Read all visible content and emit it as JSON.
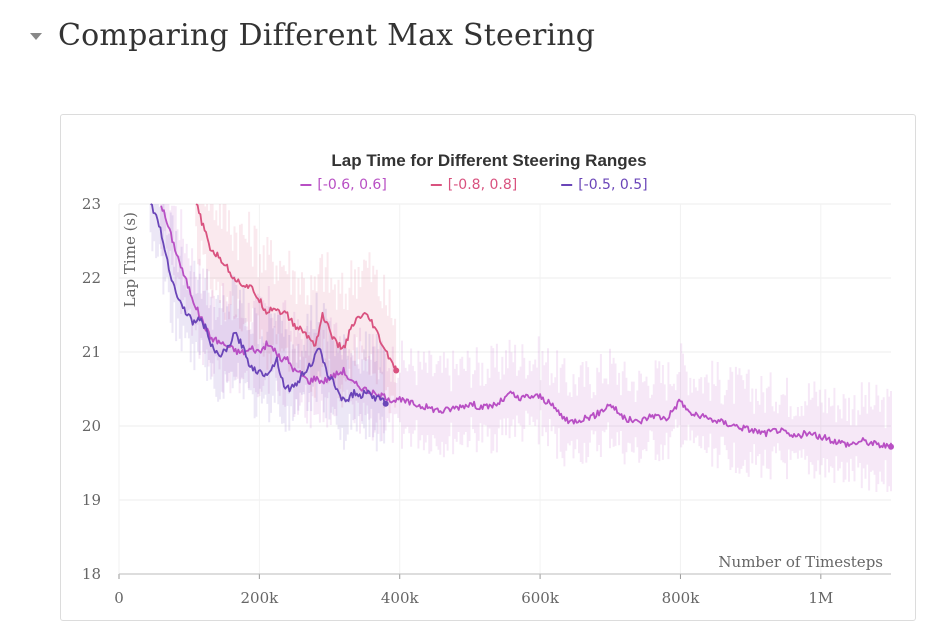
{
  "section": {
    "title": "Comparing Different Max Steering"
  },
  "chart_data": {
    "type": "line",
    "title": "Lap Time for Different Steering Ranges",
    "xlabel": "Number of Timesteps",
    "ylabel": "Lap Time (s)",
    "xlim": [
      0,
      1100000
    ],
    "ylim": [
      18,
      23
    ],
    "x_ticks": [
      {
        "value": 0,
        "label": "0"
      },
      {
        "value": 200000,
        "label": "200k"
      },
      {
        "value": 400000,
        "label": "400k"
      },
      {
        "value": 600000,
        "label": "600k"
      },
      {
        "value": 800000,
        "label": "800k"
      },
      {
        "value": 1000000,
        "label": "1M"
      }
    ],
    "y_ticks": [
      {
        "value": 18,
        "label": "18"
      },
      {
        "value": 19,
        "label": "19"
      },
      {
        "value": 20,
        "label": "20"
      },
      {
        "value": 21,
        "label": "21"
      },
      {
        "value": 22,
        "label": "22"
      },
      {
        "value": 23,
        "label": "23"
      }
    ],
    "grid": true,
    "legend_position": "top-center",
    "series": [
      {
        "name": "[-0.6, 0.6]",
        "color": "#b84fc4",
        "x": [
          60000,
          70000,
          80000,
          90000,
          100000,
          110000,
          120000,
          130000,
          140000,
          150000,
          160000,
          170000,
          180000,
          190000,
          200000,
          210000,
          220000,
          230000,
          240000,
          250000,
          260000,
          270000,
          280000,
          290000,
          300000,
          310000,
          320000,
          330000,
          340000,
          350000,
          360000,
          370000,
          380000,
          390000,
          400000,
          420000,
          440000,
          460000,
          480000,
          500000,
          520000,
          540000,
          560000,
          570000,
          580000,
          600000,
          620000,
          640000,
          660000,
          680000,
          700000,
          720000,
          740000,
          760000,
          780000,
          800000,
          810000,
          820000,
          840000,
          860000,
          880000,
          900000,
          920000,
          940000,
          960000,
          980000,
          1000000,
          1020000,
          1040000,
          1060000,
          1080000,
          1100000
        ],
        "values": [
          23.0,
          22.7,
          22.4,
          22.1,
          21.85,
          21.6,
          21.4,
          21.2,
          21.15,
          21.1,
          21.05,
          21.0,
          21.0,
          21.05,
          21.0,
          21.1,
          21.05,
          20.9,
          20.9,
          20.75,
          20.7,
          20.6,
          20.65,
          20.6,
          20.65,
          20.7,
          20.75,
          20.6,
          20.55,
          20.5,
          20.45,
          20.4,
          20.4,
          20.35,
          20.35,
          20.3,
          20.25,
          20.2,
          20.25,
          20.3,
          20.25,
          20.3,
          20.45,
          20.35,
          20.4,
          20.4,
          20.25,
          20.05,
          20.1,
          20.15,
          20.3,
          20.1,
          20.05,
          20.15,
          20.1,
          20.35,
          20.2,
          20.15,
          20.1,
          20.05,
          20.0,
          19.95,
          19.9,
          19.95,
          19.85,
          19.9,
          19.85,
          19.8,
          19.75,
          19.8,
          19.75,
          19.72
        ]
      },
      {
        "name": "[-0.8, 0.8]",
        "color": "#d9527f",
        "x": [
          110000,
          120000,
          130000,
          140000,
          150000,
          160000,
          170000,
          180000,
          190000,
          200000,
          210000,
          220000,
          230000,
          240000,
          250000,
          260000,
          270000,
          280000,
          290000,
          300000,
          310000,
          320000,
          330000,
          340000,
          350000,
          360000,
          370000,
          380000,
          390000,
          395000
        ],
        "values": [
          23.0,
          22.7,
          22.4,
          22.3,
          22.2,
          22.05,
          21.95,
          21.9,
          21.85,
          21.7,
          21.55,
          21.6,
          21.55,
          21.5,
          21.35,
          21.3,
          21.2,
          21.1,
          21.5,
          21.3,
          21.1,
          21.05,
          21.3,
          21.45,
          21.5,
          21.4,
          21.2,
          21.0,
          20.85,
          20.75
        ]
      },
      {
        "name": "[-0.5, 0.5]",
        "color": "#6a45b8",
        "x": [
          45000,
          55000,
          65000,
          75000,
          85000,
          95000,
          105000,
          115000,
          125000,
          135000,
          145000,
          155000,
          165000,
          175000,
          185000,
          195000,
          205000,
          215000,
          225000,
          235000,
          245000,
          255000,
          265000,
          275000,
          285000,
          295000,
          305000,
          315000,
          325000,
          335000,
          345000,
          355000,
          365000,
          375000,
          380000
        ],
        "values": [
          23.0,
          22.8,
          22.4,
          22.0,
          21.7,
          21.55,
          21.4,
          21.45,
          21.3,
          21.0,
          20.95,
          21.05,
          21.25,
          21.1,
          20.85,
          20.75,
          20.7,
          20.75,
          20.9,
          20.55,
          20.5,
          20.6,
          20.75,
          20.85,
          21.05,
          20.75,
          20.6,
          20.4,
          20.35,
          20.45,
          20.4,
          20.5,
          20.35,
          20.4,
          20.3
        ]
      }
    ]
  }
}
